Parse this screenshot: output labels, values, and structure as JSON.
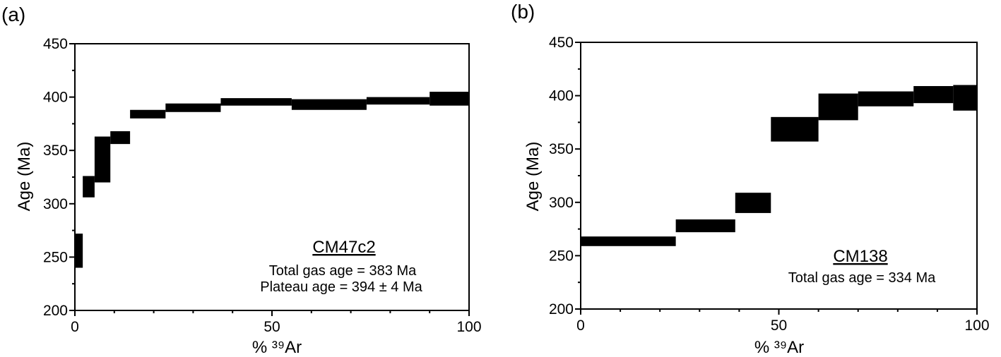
{
  "chart_data": [
    {
      "panel_label": "(a)",
      "type": "bar",
      "xlabel": "% ³⁹Ar",
      "ylabel": "Age (Ma)",
      "xlim": [
        0,
        100
      ],
      "ylim": [
        200,
        450
      ],
      "x_ticks": [
        0,
        50,
        100
      ],
      "y_ticks": [
        200,
        250,
        300,
        350,
        400,
        450
      ],
      "steps": [
        {
          "x0": 0,
          "x1": 2,
          "age_min": 240,
          "age_max": 272
        },
        {
          "x0": 2,
          "x1": 5,
          "age_min": 306,
          "age_max": 326
        },
        {
          "x0": 5,
          "x1": 9,
          "age_min": 320,
          "age_max": 363
        },
        {
          "x0": 9,
          "x1": 14,
          "age_min": 356,
          "age_max": 368
        },
        {
          "x0": 14,
          "x1": 23,
          "age_min": 380,
          "age_max": 388
        },
        {
          "x0": 23,
          "x1": 37,
          "age_min": 386,
          "age_max": 394
        },
        {
          "x0": 37,
          "x1": 55,
          "age_min": 392,
          "age_max": 399
        },
        {
          "x0": 55,
          "x1": 74,
          "age_min": 388,
          "age_max": 398
        },
        {
          "x0": 74,
          "x1": 90,
          "age_min": 393,
          "age_max": 400
        },
        {
          "x0": 90,
          "x1": 100,
          "age_min": 392,
          "age_max": 405
        }
      ],
      "annotations": {
        "sample": "CM47c2",
        "total_gas": "Total gas age = 383 Ma",
        "plateau": "Plateau age = 394 ± 4 Ma"
      }
    },
    {
      "panel_label": "(b)",
      "type": "bar",
      "xlabel": "% ³⁹Ar",
      "ylabel": "Age (Ma)",
      "xlim": [
        0,
        100
      ],
      "ylim": [
        200,
        450
      ],
      "x_ticks": [
        0,
        50,
        100
      ],
      "y_ticks": [
        200,
        250,
        300,
        350,
        400,
        450
      ],
      "steps": [
        {
          "x0": 0,
          "x1": 24,
          "age_min": 259,
          "age_max": 268
        },
        {
          "x0": 24,
          "x1": 39,
          "age_min": 272,
          "age_max": 284
        },
        {
          "x0": 39,
          "x1": 48,
          "age_min": 290,
          "age_max": 309
        },
        {
          "x0": 48,
          "x1": 60,
          "age_min": 357,
          "age_max": 380
        },
        {
          "x0": 60,
          "x1": 70,
          "age_min": 377,
          "age_max": 402
        },
        {
          "x0": 70,
          "x1": 84,
          "age_min": 390,
          "age_max": 404
        },
        {
          "x0": 84,
          "x1": 94,
          "age_min": 393,
          "age_max": 409
        },
        {
          "x0": 94,
          "x1": 100,
          "age_min": 386,
          "age_max": 410
        }
      ],
      "annotations": {
        "sample": "CM138",
        "total_gas": "Total gas age = 334 Ma"
      }
    }
  ]
}
